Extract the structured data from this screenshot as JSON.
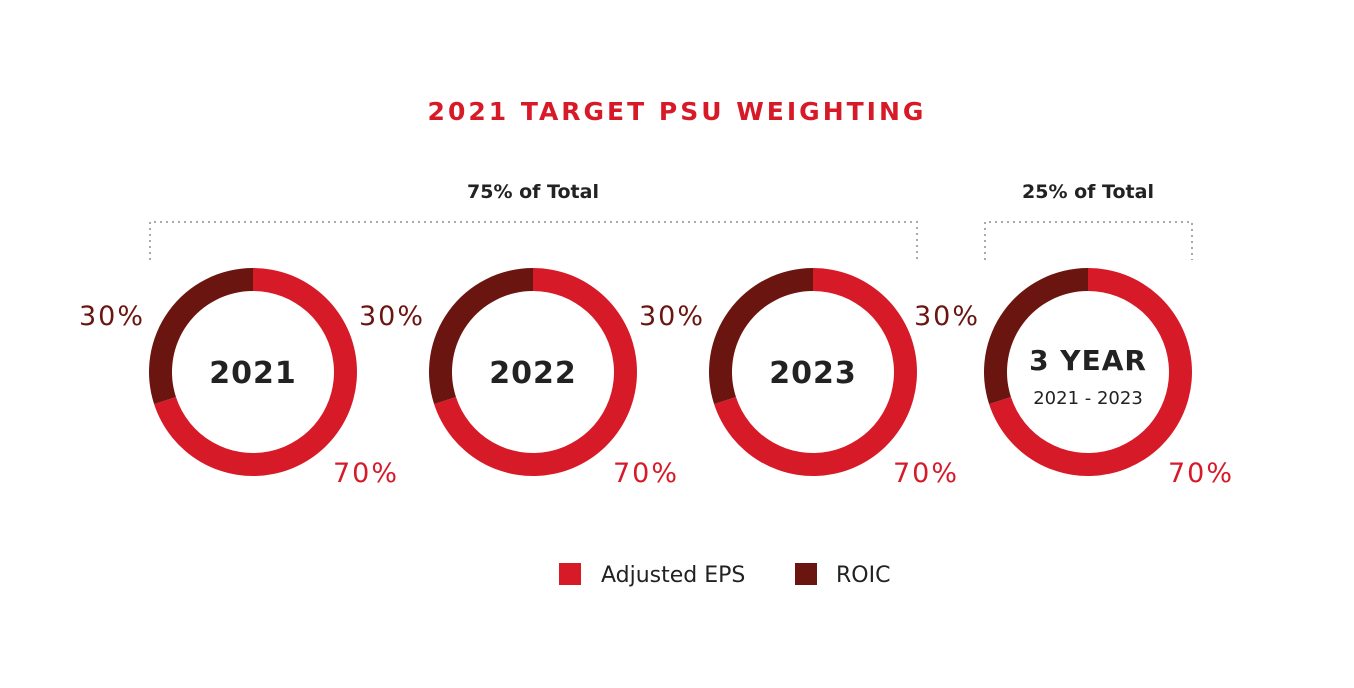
{
  "colors": {
    "adjusted_eps": "#d71a28",
    "roic": "#6b1510",
    "title": "#d71a28",
    "label_dark": "#222222",
    "bracket": "#aaaaaa",
    "pct_dark": "#6b1510",
    "pct_light": "#d71a28"
  },
  "chart_data": {
    "type": "pie",
    "title": "2021 TARGET PSU WEIGHTING",
    "groups": [
      {
        "label": "75% of Total",
        "value": 75,
        "charts": [
          0,
          1,
          2
        ]
      },
      {
        "label": "25% of Total",
        "value": 25,
        "charts": [
          3
        ]
      }
    ],
    "legend": {
      "placement": "bottom",
      "entries": [
        {
          "name": "Adjusted EPS",
          "color": "#d71a28"
        },
        {
          "name": "ROIC",
          "color": "#6b1510"
        }
      ]
    },
    "charts": [
      {
        "center_label": "2021",
        "center_sublabel": "",
        "series": [
          {
            "name": "Adjusted EPS",
            "value": 70,
            "label": "70%"
          },
          {
            "name": "ROIC",
            "value": 30,
            "label": "30%"
          }
        ]
      },
      {
        "center_label": "2022",
        "center_sublabel": "",
        "series": [
          {
            "name": "Adjusted EPS",
            "value": 70,
            "label": "70%"
          },
          {
            "name": "ROIC",
            "value": 30,
            "label": "30%"
          }
        ]
      },
      {
        "center_label": "2023",
        "center_sublabel": "",
        "series": [
          {
            "name": "Adjusted EPS",
            "value": 70,
            "label": "70%"
          },
          {
            "name": "ROIC",
            "value": 30,
            "label": "30%"
          }
        ]
      },
      {
        "center_label": "3 YEAR",
        "center_sublabel": "2021 - 2023",
        "series": [
          {
            "name": "Adjusted EPS",
            "value": 70,
            "label": "70%"
          },
          {
            "name": "ROIC",
            "value": 30,
            "label": "30%"
          }
        ]
      }
    ]
  }
}
